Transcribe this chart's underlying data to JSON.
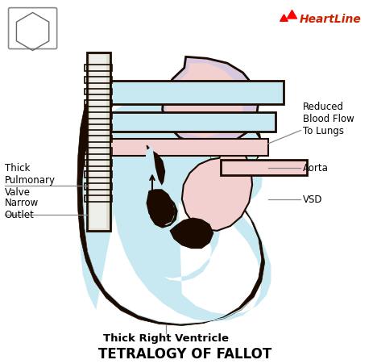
{
  "title": "TETRALOGY OF FALLOT",
  "title_fontsize": 12,
  "title_fontweight": "bold",
  "background_color": "#ffffff",
  "fig_width": 4.68,
  "fig_height": 4.52,
  "labels": {
    "thick_pulmonary": "Thick\nPulmonary\nValve",
    "narrow_outlet": "Narrow\nOutlet",
    "reduced_blood": "Reduced\nBlood Flow\nTo Lungs",
    "aorta": "Aorta",
    "vsd": "VSD",
    "thick_right": "Thick Right Ventricle"
  },
  "heart_light_blue": "#c8e8f2",
  "heart_light_pink": "#f2d0d0",
  "heart_lavender": "#d8c8de",
  "heart_dark": "#1a0a00",
  "line_color": "#888888",
  "label_fontsize": 8.5,
  "heartline_color": "#cc2200",
  "heartline_text": "HeartLine"
}
